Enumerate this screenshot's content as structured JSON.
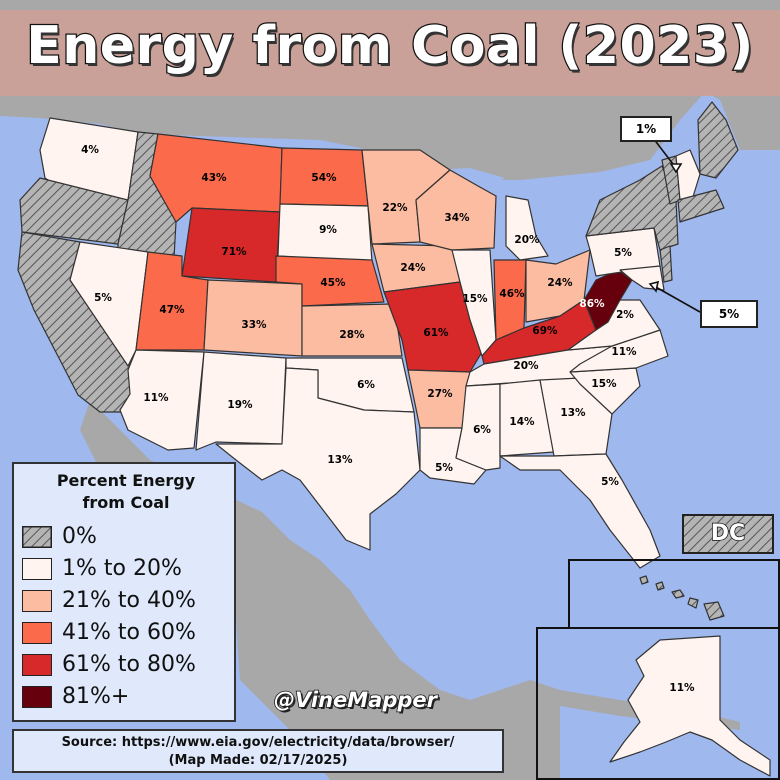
{
  "title": "Energy from Coal (2023)",
  "legend": {
    "title_line1": "Percent Energy",
    "title_line2": "from Coal",
    "items": [
      {
        "label": "0%",
        "color": "#b4b4b4",
        "pattern": "hatched"
      },
      {
        "label": "1% to 20%",
        "color": "#fff4ef"
      },
      {
        "label": "21% to 40%",
        "color": "#fcbca2"
      },
      {
        "label": "41% to 60%",
        "color": "#fb6a4a"
      },
      {
        "label": "61% to 80%",
        "color": "#d7282a"
      },
      {
        "label": "81%+",
        "color": "#67000d"
      }
    ]
  },
  "states": [
    {
      "name": "Washington",
      "label": "4%",
      "bin": 1
    },
    {
      "name": "Oregon",
      "label": "",
      "bin": 0
    },
    {
      "name": "California",
      "label": "",
      "bin": 0
    },
    {
      "name": "Idaho",
      "label": "",
      "bin": 0
    },
    {
      "name": "Nevada",
      "label": "5%",
      "bin": 1
    },
    {
      "name": "Montana",
      "label": "43%",
      "bin": 3
    },
    {
      "name": "Wyoming",
      "label": "71%",
      "bin": 4
    },
    {
      "name": "Utah",
      "label": "47%",
      "bin": 3
    },
    {
      "name": "Colorado",
      "label": "33%",
      "bin": 2
    },
    {
      "name": "Arizona",
      "label": "11%",
      "bin": 1
    },
    {
      "name": "New Mexico",
      "label": "19%",
      "bin": 1
    },
    {
      "name": "North Dakota",
      "label": "54%",
      "bin": 3
    },
    {
      "name": "South Dakota",
      "label": "9%",
      "bin": 1
    },
    {
      "name": "Nebraska",
      "label": "45%",
      "bin": 3
    },
    {
      "name": "Kansas",
      "label": "28%",
      "bin": 2
    },
    {
      "name": "Oklahoma",
      "label": "6%",
      "bin": 1
    },
    {
      "name": "Texas",
      "label": "13%",
      "bin": 1
    },
    {
      "name": "Minnesota",
      "label": "22%",
      "bin": 2
    },
    {
      "name": "Iowa",
      "label": "24%",
      "bin": 2
    },
    {
      "name": "Missouri",
      "label": "61%",
      "bin": 4
    },
    {
      "name": "Arkansas",
      "label": "27%",
      "bin": 2
    },
    {
      "name": "Louisiana",
      "label": "5%",
      "bin": 1
    },
    {
      "name": "Wisconsin",
      "label": "34%",
      "bin": 2
    },
    {
      "name": "Illinois",
      "label": "15%",
      "bin": 1
    },
    {
      "name": "Michigan",
      "label": "20%",
      "bin": 1
    },
    {
      "name": "Indiana",
      "label": "46%",
      "bin": 3
    },
    {
      "name": "Ohio",
      "label": "24%",
      "bin": 2
    },
    {
      "name": "Kentucky",
      "label": "69%",
      "bin": 4
    },
    {
      "name": "Tennessee",
      "label": "20%",
      "bin": 1
    },
    {
      "name": "Mississippi",
      "label": "6%",
      "bin": 1
    },
    {
      "name": "Alabama",
      "label": "14%",
      "bin": 1
    },
    {
      "name": "Georgia",
      "label": "13%",
      "bin": 1
    },
    {
      "name": "Florida",
      "label": "5%",
      "bin": 1
    },
    {
      "name": "South Carolina",
      "label": "15%",
      "bin": 1
    },
    {
      "name": "North Carolina",
      "label": "11%",
      "bin": 1
    },
    {
      "name": "Virginia",
      "label": "2%",
      "bin": 1
    },
    {
      "name": "West Virginia",
      "label": "86%",
      "bin": 5
    },
    {
      "name": "Pennsylvania",
      "label": "5%",
      "bin": 1
    },
    {
      "name": "New York",
      "label": "",
      "bin": 0
    },
    {
      "name": "Maine",
      "label": "",
      "bin": 0
    },
    {
      "name": "Vermont",
      "label": "",
      "bin": 0
    },
    {
      "name": "New Hampshire",
      "label": "1%",
      "bin": 1
    },
    {
      "name": "Maryland",
      "label": "5%",
      "bin": 1
    },
    {
      "name": "Hawaii",
      "label": "",
      "bin": 0
    },
    {
      "name": "Alaska",
      "label": "11%",
      "bin": 1
    }
  ],
  "callouts": {
    "new_hampshire": "1%",
    "maryland": "5%"
  },
  "dc_label": "DC",
  "credit": "@VineMapper",
  "source_line1": "Source: https://www.eia.gov/electricity/data/browser/",
  "source_line2": "(Map Made: 02/17/2025)"
}
